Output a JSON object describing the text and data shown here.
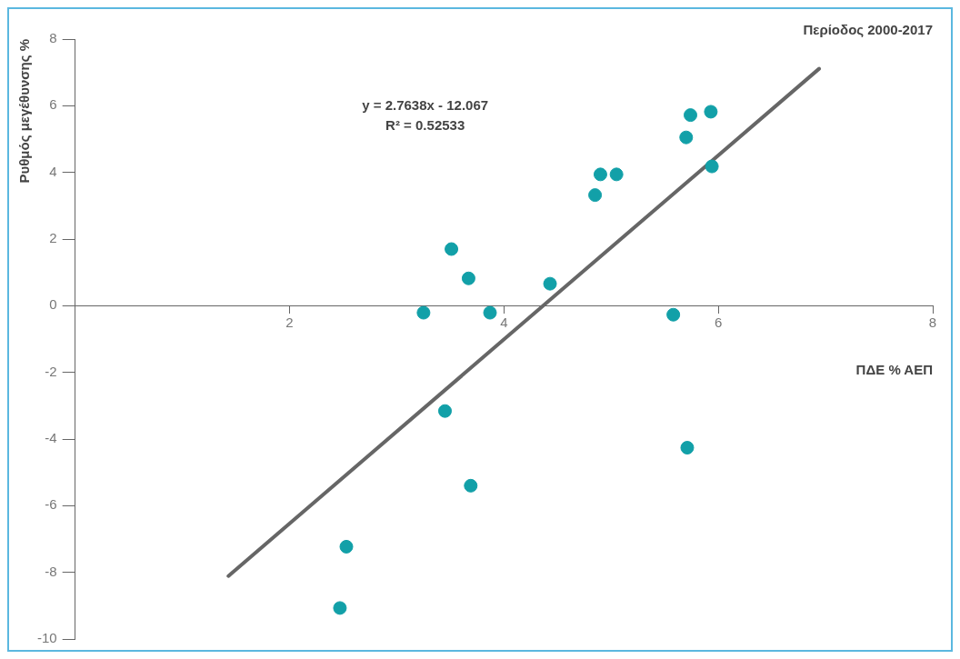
{
  "chart_data": {
    "type": "scatter",
    "title": "Περίοδος 2000-2017",
    "xlabel": "ΠΔΕ % ΑΕΠ",
    "ylabel": "Ρυθμός μεγέθυνσης %",
    "annotations": [
      "y = 2.7638x - 12.067",
      "R² = 0.52533"
    ],
    "series": [
      {
        "type": "scatter",
        "color": "#12a0a8",
        "x": [
          2.47,
          2.53,
          3.25,
          3.45,
          3.51,
          3.67,
          3.69,
          3.87,
          4.43,
          4.85,
          4.9,
          5.05,
          5.58,
          5.7,
          5.74,
          5.71,
          5.93,
          5.94
        ],
        "values": [
          -9.07,
          -7.23,
          -0.21,
          -3.16,
          1.7,
          0.82,
          -5.4,
          -0.21,
          0.66,
          3.32,
          3.94,
          3.94,
          -0.27,
          5.05,
          5.72,
          -4.26,
          5.82,
          4.18
        ]
      },
      {
        "type": "line",
        "marker": "none",
        "color": "#666666",
        "x": [
          1.43,
          6.94
        ],
        "values": [
          -8.11,
          7.11
        ]
      }
    ],
    "xlim": [
      0,
      8
    ],
    "xticks": [
      {
        "value": 0,
        "label": null
      },
      2,
      4,
      6,
      8
    ],
    "ylim": [
      -10,
      8
    ],
    "yticks": [
      -10,
      -8,
      -6,
      -4,
      -2,
      0,
      2,
      4,
      6,
      8
    ],
    "legend": false,
    "marker": "circle"
  }
}
